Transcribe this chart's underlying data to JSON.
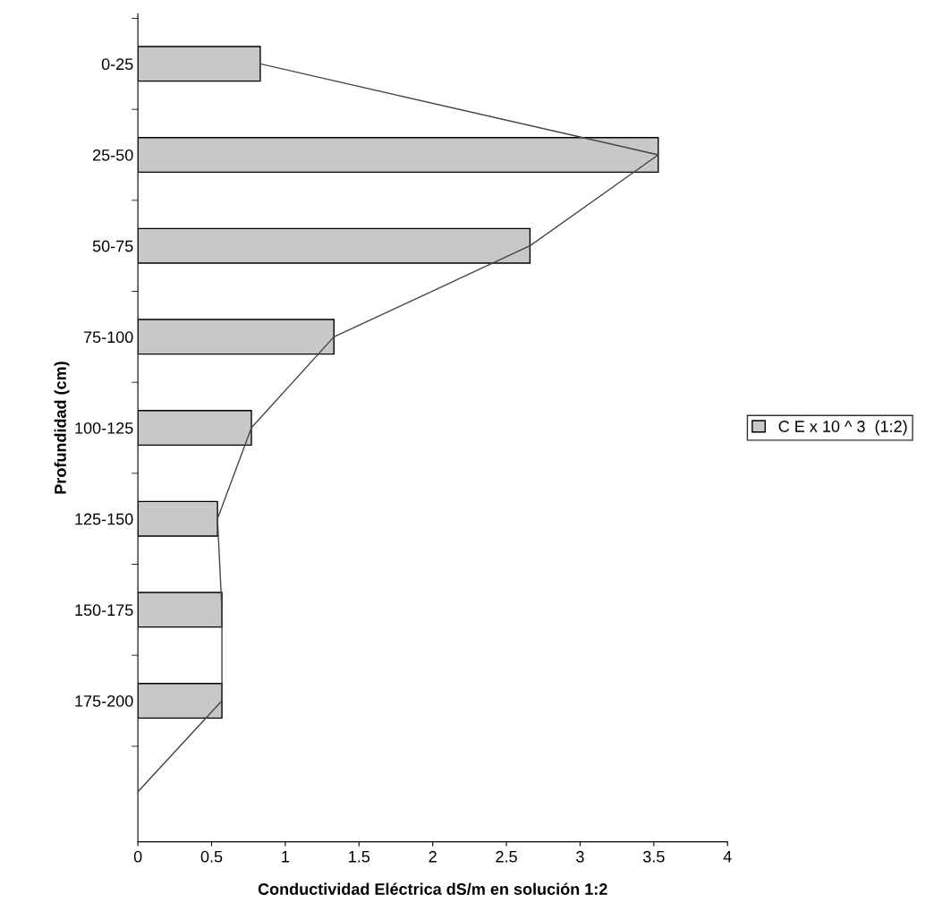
{
  "chart_data": {
    "type": "bar",
    "orientation": "horizontal",
    "xlabel": "Conductividad Eléctrica dS/m en solución 1:2",
    "ylabel": "Profundidad (cm)",
    "categories": [
      "0-25",
      "25-50",
      "50-75",
      "75-100",
      "100-125",
      "125-150",
      "150-175",
      "175-200",
      null
    ],
    "series": [
      {
        "name": "C E x 10 ^ 3  (1:2)",
        "color": "#c8c8c8",
        "values": [
          0.83,
          3.53,
          2.66,
          1.33,
          0.77,
          0.54,
          0.57,
          0.57,
          null
        ]
      },
      {
        "type": "line",
        "color": "#444444",
        "values": [
          0.83,
          3.53,
          2.66,
          1.33,
          0.77,
          0.54,
          0.57,
          0.57,
          0
        ]
      }
    ],
    "xlim": [
      0,
      4
    ],
    "xticks": [
      0,
      0.5,
      1,
      1.5,
      2,
      2.5,
      3,
      3.5,
      4
    ],
    "legend": "right",
    "grid": false
  }
}
